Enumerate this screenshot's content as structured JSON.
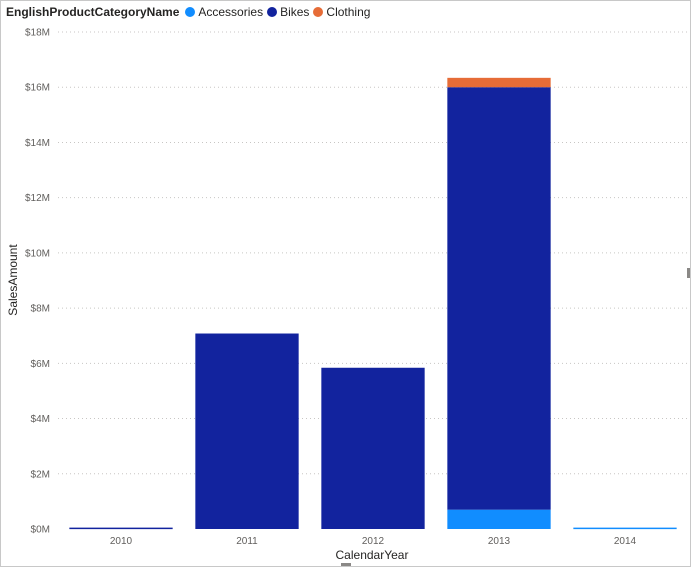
{
  "chart_data": {
    "type": "bar",
    "stacked": true,
    "categories": [
      "2010",
      "2011",
      "2012",
      "2013",
      "2014"
    ],
    "series": [
      {
        "name": "Accessories",
        "color": "#118dff",
        "values": [
          0,
          0,
          0,
          0.7,
          0.05
        ]
      },
      {
        "name": "Bikes",
        "color": "#12239e",
        "values": [
          0.05,
          7.08,
          5.84,
          15.3,
          0
        ]
      },
      {
        "name": "Clothing",
        "color": "#e66c37",
        "values": [
          0,
          0,
          0,
          0.34,
          0
        ]
      }
    ],
    "legend_title": "EnglishProductCategoryName",
    "legend_position": "top-left",
    "xlabel": "CalendarYear",
    "ylabel": "SalesAmount",
    "ylim": [
      0,
      18
    ],
    "y_ticks": [
      0,
      2,
      4,
      6,
      8,
      10,
      12,
      14,
      16,
      18
    ],
    "y_tick_labels": [
      "$0M",
      "$2M",
      "$4M",
      "$6M",
      "$8M",
      "$10M",
      "$12M",
      "$14M",
      "$16M",
      "$18M"
    ],
    "unit": "millions of dollars",
    "grid": true
  }
}
